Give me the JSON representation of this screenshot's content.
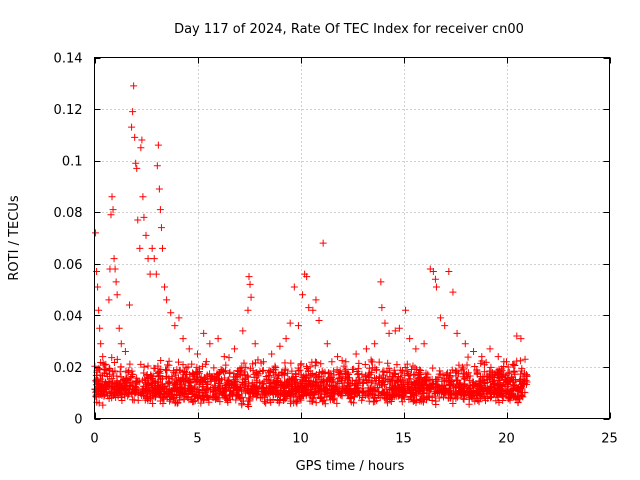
{
  "chart_data": {
    "type": "scatter",
    "title": "Day 117 of 2024, Rate Of TEC Index for receiver cn00",
    "xlabel": "GPS time / hours",
    "ylabel": "ROTI / TECUs",
    "xlim": [
      0,
      25
    ],
    "ylim": [
      0,
      0.14
    ],
    "x_ticks": [
      0,
      5,
      10,
      15,
      20,
      25
    ],
    "y_ticks": [
      0,
      0.02,
      0.04,
      0.06,
      0.08,
      0.1,
      0.12,
      0.14
    ],
    "x_tick_labels": [
      "0",
      "5",
      "10",
      "15",
      "20",
      "25"
    ],
    "y_tick_labels": [
      "0",
      "0.02",
      "0.04",
      "0.06",
      "0.08",
      "0.1",
      "0.12",
      "0.14"
    ],
    "grid": true,
    "marker": "+",
    "color": "#ff0000",
    "series": [
      {
        "name": "ROTI",
        "points": [
          [
            0.05,
            0.072
          ],
          [
            0.1,
            0.057
          ],
          [
            0.15,
            0.051
          ],
          [
            0.2,
            0.042
          ],
          [
            0.25,
            0.035
          ],
          [
            0.3,
            0.029
          ],
          [
            0.4,
            0.024
          ],
          [
            0.55,
            0.021
          ],
          [
            0.7,
            0.046
          ],
          [
            0.75,
            0.058
          ],
          [
            0.8,
            0.079
          ],
          [
            0.85,
            0.086
          ],
          [
            0.9,
            0.081
          ],
          [
            0.95,
            0.062
          ],
          [
            1.0,
            0.058
          ],
          [
            1.05,
            0.053
          ],
          [
            1.1,
            0.048
          ],
          [
            1.2,
            0.035
          ],
          [
            1.3,
            0.029
          ],
          [
            1.5,
            0.026
          ],
          [
            1.7,
            0.044
          ],
          [
            1.8,
            0.113
          ],
          [
            1.85,
            0.119
          ],
          [
            1.9,
            0.129
          ],
          [
            1.95,
            0.109
          ],
          [
            2.0,
            0.099
          ],
          [
            2.05,
            0.097
          ],
          [
            2.1,
            0.077
          ],
          [
            2.2,
            0.066
          ],
          [
            2.25,
            0.105
          ],
          [
            2.3,
            0.108
          ],
          [
            2.35,
            0.086
          ],
          [
            2.4,
            0.078
          ],
          [
            2.5,
            0.071
          ],
          [
            2.6,
            0.062
          ],
          [
            2.7,
            0.056
          ],
          [
            2.8,
            0.066
          ],
          [
            2.9,
            0.062
          ],
          [
            3.0,
            0.056
          ],
          [
            3.05,
            0.098
          ],
          [
            3.1,
            0.106
          ],
          [
            3.15,
            0.089
          ],
          [
            3.2,
            0.081
          ],
          [
            3.25,
            0.074
          ],
          [
            3.3,
            0.066
          ],
          [
            3.4,
            0.051
          ],
          [
            3.5,
            0.046
          ],
          [
            3.7,
            0.041
          ],
          [
            3.9,
            0.036
          ],
          [
            4.1,
            0.039
          ],
          [
            4.3,
            0.031
          ],
          [
            4.6,
            0.027
          ],
          [
            5.0,
            0.025
          ],
          [
            5.3,
            0.033
          ],
          [
            5.6,
            0.029
          ],
          [
            6.0,
            0.031
          ],
          [
            6.3,
            0.024
          ],
          [
            6.8,
            0.027
          ],
          [
            7.2,
            0.034
          ],
          [
            7.45,
            0.042
          ],
          [
            7.5,
            0.055
          ],
          [
            7.55,
            0.052
          ],
          [
            7.6,
            0.047
          ],
          [
            7.8,
            0.029
          ],
          [
            8.2,
            0.022
          ],
          [
            8.6,
            0.025
          ],
          [
            9.0,
            0.028
          ],
          [
            9.3,
            0.031
          ],
          [
            9.5,
            0.037
          ],
          [
            9.7,
            0.051
          ],
          [
            9.9,
            0.036
          ],
          [
            10.1,
            0.048
          ],
          [
            10.2,
            0.056
          ],
          [
            10.3,
            0.055
          ],
          [
            10.4,
            0.043
          ],
          [
            10.6,
            0.042
          ],
          [
            10.75,
            0.046
          ],
          [
            10.9,
            0.038
          ],
          [
            11.1,
            0.068
          ],
          [
            11.3,
            0.029
          ],
          [
            11.8,
            0.024
          ],
          [
            12.2,
            0.022
          ],
          [
            12.7,
            0.025
          ],
          [
            13.2,
            0.027
          ],
          [
            13.6,
            0.029
          ],
          [
            13.9,
            0.053
          ],
          [
            13.95,
            0.043
          ],
          [
            14.1,
            0.037
          ],
          [
            14.3,
            0.033
          ],
          [
            14.6,
            0.034
          ],
          [
            14.8,
            0.035
          ],
          [
            15.1,
            0.042
          ],
          [
            15.3,
            0.031
          ],
          [
            15.6,
            0.027
          ],
          [
            16.0,
            0.029
          ],
          [
            16.3,
            0.058
          ],
          [
            16.45,
            0.057
          ],
          [
            16.55,
            0.054
          ],
          [
            16.6,
            0.051
          ],
          [
            16.8,
            0.039
          ],
          [
            17.0,
            0.036
          ],
          [
            17.2,
            0.057
          ],
          [
            17.4,
            0.049
          ],
          [
            17.6,
            0.033
          ],
          [
            18.0,
            0.029
          ],
          [
            18.4,
            0.026
          ],
          [
            18.8,
            0.024
          ],
          [
            19.2,
            0.027
          ],
          [
            19.6,
            0.024
          ],
          [
            20.0,
            0.022
          ],
          [
            20.3,
            0.021
          ],
          [
            20.5,
            0.032
          ],
          [
            20.7,
            0.031
          ],
          [
            20.9,
            0.023
          ]
        ],
        "dense_band": {
          "x_range": [
            0,
            21
          ],
          "typical_range": [
            0.004,
            0.025
          ],
          "median": 0.012
        }
      }
    ]
  }
}
